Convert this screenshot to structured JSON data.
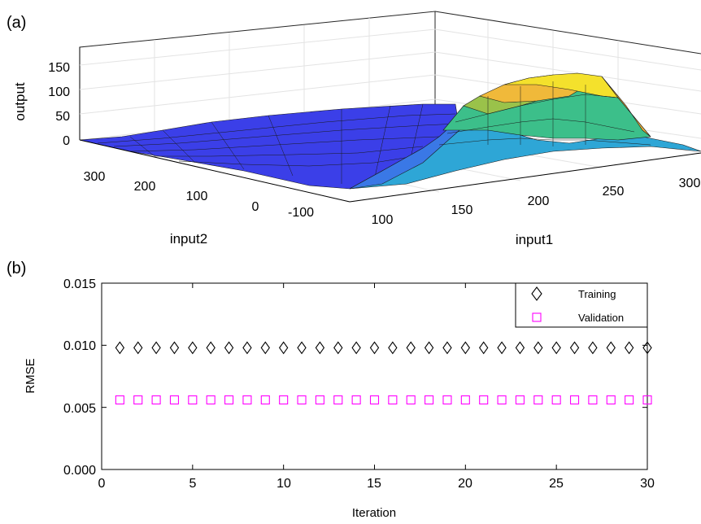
{
  "panel_a": {
    "label": "(a)",
    "zlabel": "output",
    "xlabel": "input1",
    "ylabel": "input2",
    "z_ticks": [
      "0",
      "50",
      "100",
      "150"
    ],
    "x_ticks": [
      "100",
      "150",
      "200",
      "250",
      "300"
    ],
    "y_ticks": [
      "300",
      "200",
      "100",
      "0",
      "-100"
    ]
  },
  "panel_b": {
    "label": "(b)",
    "xlabel": "Iteration",
    "ylabel": "RMSE",
    "x_ticks": [
      "0",
      "5",
      "10",
      "15",
      "20",
      "25",
      "30"
    ],
    "y_ticks": [
      "0.000",
      "0.005",
      "0.010",
      "0.015"
    ],
    "legend": {
      "training": "Training",
      "validation": "Validation"
    }
  },
  "chart_data": [
    {
      "type": "surface",
      "xlabel": "input1",
      "ylabel": "input2",
      "zlabel": "output",
      "xlim": [
        100,
        300
      ],
      "ylim": [
        -100,
        350
      ],
      "zlim": [
        0,
        150
      ],
      "description_values": {
        "peak_output_approx": 130,
        "peak_near_input1": 250,
        "peak_near_input2": 100
      }
    },
    {
      "type": "scatter",
      "xlabel": "Iteration",
      "ylabel": "RMSE",
      "xlim": [
        0,
        30
      ],
      "ylim": [
        0,
        0.015
      ],
      "legend_position": "top-right",
      "series": [
        {
          "name": "Training",
          "marker": "diamond",
          "color": "#000000",
          "x": [
            1,
            2,
            3,
            4,
            5,
            6,
            7,
            8,
            9,
            10,
            11,
            12,
            13,
            14,
            15,
            16,
            17,
            18,
            19,
            20,
            21,
            22,
            23,
            24,
            25,
            26,
            27,
            28,
            29,
            30
          ],
          "y": [
            0.0098,
            0.0098,
            0.0098,
            0.0098,
            0.0098,
            0.0098,
            0.0098,
            0.0098,
            0.0098,
            0.0098,
            0.0098,
            0.0098,
            0.0098,
            0.0098,
            0.0098,
            0.0098,
            0.0098,
            0.0098,
            0.0098,
            0.0098,
            0.0098,
            0.0098,
            0.0098,
            0.0098,
            0.0098,
            0.0098,
            0.0098,
            0.0098,
            0.0098,
            0.0098
          ]
        },
        {
          "name": "Validation",
          "marker": "square",
          "color": "#ff00ff",
          "x": [
            1,
            2,
            3,
            4,
            5,
            6,
            7,
            8,
            9,
            10,
            11,
            12,
            13,
            14,
            15,
            16,
            17,
            18,
            19,
            20,
            21,
            22,
            23,
            24,
            25,
            26,
            27,
            28,
            29,
            30
          ],
          "y": [
            0.0056,
            0.0056,
            0.0056,
            0.0056,
            0.0056,
            0.0056,
            0.0056,
            0.0056,
            0.0056,
            0.0056,
            0.0056,
            0.0056,
            0.0056,
            0.0056,
            0.0056,
            0.0056,
            0.0056,
            0.0056,
            0.0056,
            0.0056,
            0.0056,
            0.0056,
            0.0056,
            0.0056,
            0.0056,
            0.0056,
            0.0056,
            0.0056,
            0.0056,
            0.0056
          ]
        }
      ]
    }
  ]
}
